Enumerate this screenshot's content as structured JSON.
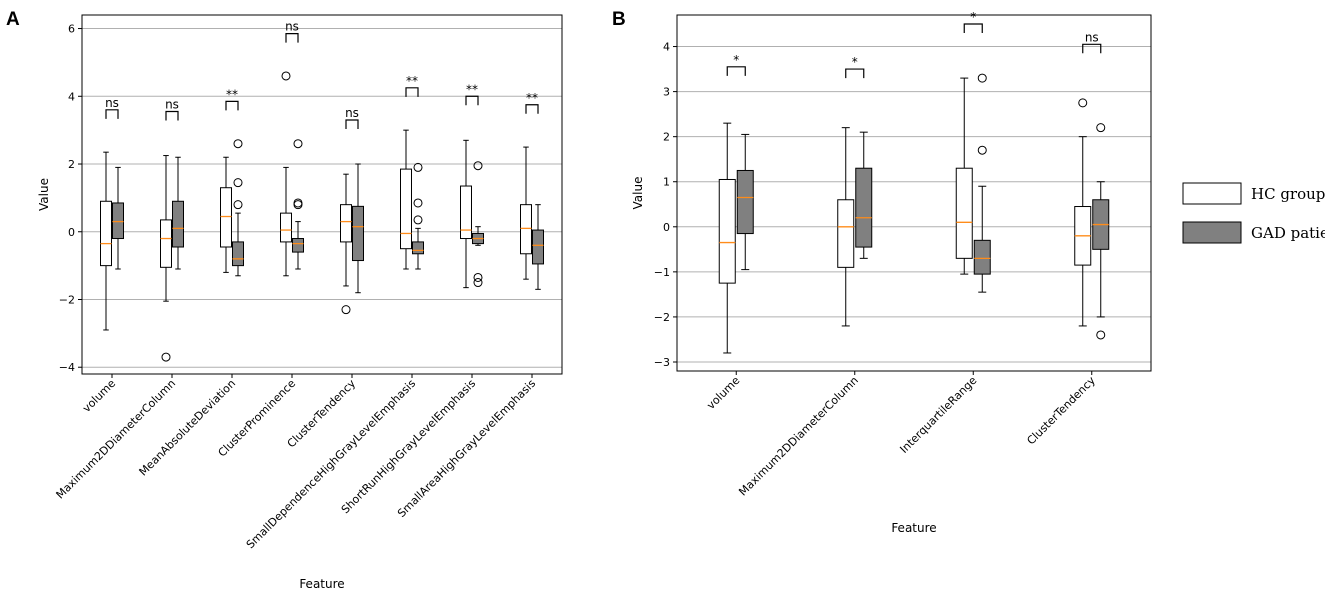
{
  "legend": {
    "items": [
      {
        "label": "HC group",
        "color": "#ffffff"
      },
      {
        "label": "GAD patients",
        "color": "#808080"
      }
    ]
  },
  "colors": {
    "median": "#ff8c1a",
    "grid": "#b0b0b0",
    "hc_fill": "#ffffff",
    "gad_fill": "#808080"
  },
  "chart_data": [
    {
      "type": "boxplot",
      "panel": "A",
      "title": "",
      "xlabel": "Feature",
      "ylabel": "Value",
      "ylim": [
        -4.2,
        6.4
      ],
      "yticks": [
        -4,
        -2,
        0,
        2,
        4,
        6
      ],
      "categories": [
        "volume",
        "Maximum2DDiameterColumn",
        "MeanAbsoluteDeviation",
        "ClusterProminence",
        "ClusterTendency",
        "SmallDependenceHighGrayLevelEmphasis",
        "ShortRunHighGrayLevelEmphasis",
        "SmallAreaHighGrayLevelEmphasis"
      ],
      "significance": [
        "ns",
        "ns",
        "**",
        "ns",
        "ns",
        "**",
        "**",
        "**"
      ],
      "sig_heights": [
        3.6,
        3.55,
        3.85,
        5.85,
        3.3,
        4.25,
        4.0,
        3.75
      ],
      "series": [
        {
          "name": "HC group",
          "boxes": [
            {
              "whislo": -2.9,
              "q1": -1.0,
              "med": -0.35,
              "q3": 0.9,
              "whishi": 2.35,
              "fliers": []
            },
            {
              "whislo": -2.05,
              "q1": -1.05,
              "med": -0.2,
              "q3": 0.35,
              "whishi": 2.25,
              "fliers": [
                -3.7
              ]
            },
            {
              "whislo": -1.2,
              "q1": -0.45,
              "med": 0.45,
              "q3": 1.3,
              "whishi": 2.2,
              "fliers": []
            },
            {
              "whislo": -1.3,
              "q1": -0.3,
              "med": 0.05,
              "q3": 0.55,
              "whishi": 1.9,
              "fliers": [
                4.6
              ]
            },
            {
              "whislo": -1.6,
              "q1": -0.3,
              "med": 0.3,
              "q3": 0.8,
              "whishi": 1.7,
              "fliers": [
                -2.3
              ]
            },
            {
              "whislo": -1.1,
              "q1": -0.5,
              "med": -0.05,
              "q3": 1.85,
              "whishi": 3.0,
              "fliers": []
            },
            {
              "whislo": -1.65,
              "q1": -0.2,
              "med": 0.05,
              "q3": 1.35,
              "whishi": 2.7,
              "fliers": []
            },
            {
              "whislo": -1.4,
              "q1": -0.65,
              "med": 0.1,
              "q3": 0.8,
              "whishi": 2.5,
              "fliers": []
            }
          ]
        },
        {
          "name": "GAD patients",
          "boxes": [
            {
              "whislo": -1.1,
              "q1": -0.2,
              "med": 0.3,
              "q3": 0.85,
              "whishi": 1.9,
              "fliers": []
            },
            {
              "whislo": -1.1,
              "q1": -0.45,
              "med": 0.1,
              "q3": 0.9,
              "whishi": 2.2,
              "fliers": []
            },
            {
              "whislo": -1.3,
              "q1": -1.0,
              "med": -0.8,
              "q3": -0.3,
              "whishi": 0.55,
              "fliers": [
                2.6,
                1.45,
                0.8
              ]
            },
            {
              "whislo": -1.1,
              "q1": -0.6,
              "med": -0.35,
              "q3": -0.2,
              "whishi": 0.3,
              "fliers": [
                2.6,
                0.85,
                0.8
              ]
            },
            {
              "whislo": -1.8,
              "q1": -0.85,
              "med": 0.15,
              "q3": 0.75,
              "whishi": 2.0,
              "fliers": []
            },
            {
              "whislo": -1.1,
              "q1": -0.65,
              "med": -0.55,
              "q3": -0.3,
              "whishi": 0.1,
              "fliers": [
                1.9,
                0.85,
                0.35
              ]
            },
            {
              "whislo": -0.4,
              "q1": -0.35,
              "med": -0.2,
              "q3": -0.05,
              "whishi": 0.15,
              "fliers": [
                1.95,
                -1.35,
                -1.5
              ]
            },
            {
              "whislo": -1.7,
              "q1": -0.95,
              "med": -0.4,
              "q3": 0.05,
              "whishi": 0.8,
              "fliers": []
            }
          ]
        }
      ]
    },
    {
      "type": "boxplot",
      "panel": "B",
      "title": "",
      "xlabel": "Feature",
      "ylabel": "Value",
      "ylim": [
        -3.2,
        4.7
      ],
      "yticks": [
        -3,
        -2,
        -1,
        0,
        1,
        2,
        3,
        4
      ],
      "categories": [
        "volume",
        "Maximum2DDiameterColumn",
        "InterquartileRange",
        "ClusterTendency"
      ],
      "significance": [
        "*",
        "*",
        "*",
        "ns"
      ],
      "sig_heights": [
        3.55,
        3.5,
        4.5,
        4.05
      ],
      "series": [
        {
          "name": "HC group",
          "boxes": [
            {
              "whislo": -2.8,
              "q1": -1.25,
              "med": -0.35,
              "q3": 1.05,
              "whishi": 2.3,
              "fliers": []
            },
            {
              "whislo": -2.2,
              "q1": -0.9,
              "med": 0.0,
              "q3": 0.6,
              "whishi": 2.2,
              "fliers": []
            },
            {
              "whislo": -1.05,
              "q1": -0.7,
              "med": 0.1,
              "q3": 1.3,
              "whishi": 3.3,
              "fliers": []
            },
            {
              "whislo": -2.2,
              "q1": -0.85,
              "med": -0.2,
              "q3": 0.45,
              "whishi": 2.0,
              "fliers": [
                2.75
              ]
            }
          ]
        },
        {
          "name": "GAD patients",
          "boxes": [
            {
              "whislo": -0.95,
              "q1": -0.15,
              "med": 0.65,
              "q3": 1.25,
              "whishi": 2.05,
              "fliers": []
            },
            {
              "whislo": -0.7,
              "q1": -0.45,
              "med": 0.2,
              "q3": 1.3,
              "whishi": 2.1,
              "fliers": []
            },
            {
              "whislo": -1.45,
              "q1": -1.05,
              "med": -0.7,
              "q3": -0.3,
              "whishi": 0.9,
              "fliers": [
                3.3,
                1.7
              ]
            },
            {
              "whislo": -2.0,
              "q1": -0.5,
              "med": 0.05,
              "q3": 0.6,
              "whishi": 1.0,
              "fliers": [
                2.2,
                -2.4
              ]
            }
          ]
        }
      ]
    }
  ]
}
